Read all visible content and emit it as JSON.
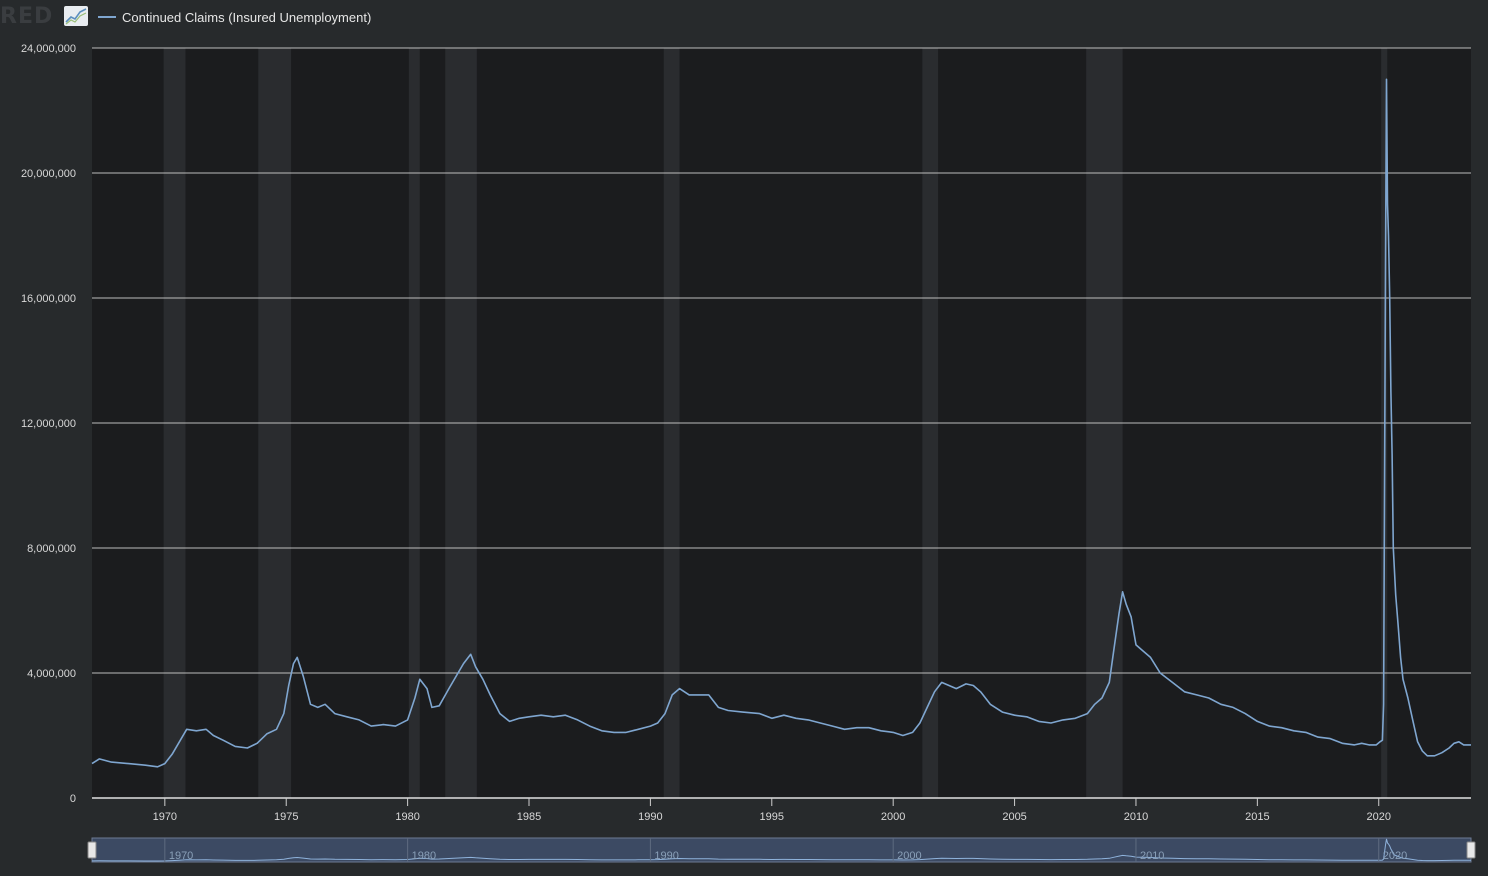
{
  "header": {
    "logo_text": "RED",
    "chart_icon": "line-chart-icon",
    "legend_label": "Continued Claims (Insured Unemployment)",
    "legend_color": "#7fa6d0"
  },
  "colors": {
    "background": "#272a2c",
    "plot_background": "#1b1c1e",
    "recession_band": "#2a2c2f",
    "gridline": "#d8d8d8",
    "series": "#7fa6d0",
    "navigator_fill": "#3c4a63"
  },
  "chart_data": {
    "type": "line",
    "title": "",
    "xlabel": "",
    "ylabel": "",
    "ylim": [
      0,
      24000000
    ],
    "xlim": [
      1967.0,
      2023.8
    ],
    "y_ticks": [
      0,
      4000000,
      8000000,
      12000000,
      16000000,
      20000000,
      24000000
    ],
    "y_tick_labels": [
      "0",
      "4,000,000",
      "8,000,000",
      "12,000,000",
      "16,000,000",
      "20,000,000",
      "24,000,000"
    ],
    "x_ticks": [
      1970,
      1975,
      1980,
      1985,
      1990,
      1995,
      2000,
      2005,
      2010,
      2015,
      2020
    ],
    "x_tick_labels": [
      "1970",
      "1975",
      "1980",
      "1985",
      "1990",
      "1995",
      "2000",
      "2005",
      "2010",
      "2015",
      "2020"
    ],
    "navigator_ticks": [
      1970,
      1980,
      1990,
      2000,
      2010,
      2020
    ],
    "navigator_tick_labels": [
      "1970",
      "1980",
      "1990",
      "2000",
      "2010",
      "2020"
    ],
    "grid": true,
    "recessions": [
      [
        1969.95,
        1970.85
      ],
      [
        1973.85,
        1975.2
      ],
      [
        1980.05,
        1980.5
      ],
      [
        1981.55,
        1982.85
      ],
      [
        1990.55,
        1991.2
      ],
      [
        2001.2,
        2001.85
      ],
      [
        2007.95,
        2009.45
      ],
      [
        2020.1,
        2020.35
      ]
    ],
    "series": [
      {
        "name": "Continued Claims (Insured Unemployment)",
        "x": [
          1967.0,
          1967.3,
          1967.8,
          1968.5,
          1969.2,
          1969.7,
          1970.0,
          1970.3,
          1970.6,
          1970.9,
          1971.3,
          1971.7,
          1972.0,
          1972.4,
          1972.9,
          1973.4,
          1973.8,
          1974.2,
          1974.6,
          1974.9,
          1975.1,
          1975.3,
          1975.45,
          1975.7,
          1976.0,
          1976.3,
          1976.6,
          1977.0,
          1977.5,
          1978.0,
          1978.5,
          1979.0,
          1979.5,
          1980.0,
          1980.3,
          1980.5,
          1980.8,
          1981.0,
          1981.3,
          1981.7,
          1982.0,
          1982.3,
          1982.6,
          1982.8,
          1983.1,
          1983.4,
          1983.8,
          1984.2,
          1984.6,
          1985.0,
          1985.5,
          1986.0,
          1986.5,
          1987.0,
          1987.5,
          1988.0,
          1988.5,
          1989.0,
          1989.5,
          1990.0,
          1990.3,
          1990.6,
          1990.9,
          1991.2,
          1991.6,
          1992.0,
          1992.4,
          1992.8,
          1993.2,
          1993.8,
          1994.5,
          1995.0,
          1995.5,
          1996.0,
          1996.5,
          1997.0,
          1997.5,
          1998.0,
          1998.5,
          1999.0,
          1999.5,
          2000.0,
          2000.4,
          2000.8,
          2001.1,
          2001.4,
          2001.7,
          2002.0,
          2002.3,
          2002.6,
          2003.0,
          2003.3,
          2003.6,
          2004.0,
          2004.5,
          2005.0,
          2005.5,
          2006.0,
          2006.5,
          2007.0,
          2007.5,
          2008.0,
          2008.3,
          2008.6,
          2008.9,
          2009.1,
          2009.3,
          2009.45,
          2009.6,
          2009.8,
          2010.0,
          2010.3,
          2010.6,
          2011.0,
          2011.5,
          2012.0,
          2012.5,
          2013.0,
          2013.5,
          2014.0,
          2014.5,
          2015.0,
          2015.5,
          2016.0,
          2016.5,
          2017.0,
          2017.5,
          2018.0,
          2018.5,
          2019.0,
          2019.3,
          2019.6,
          2019.9,
          2020.05,
          2020.15,
          2020.2,
          2020.28,
          2020.32,
          2020.36,
          2020.4,
          2020.45,
          2020.5,
          2020.55,
          2020.6,
          2020.7,
          2020.8,
          2020.9,
          2021.0,
          2021.2,
          2021.4,
          2021.6,
          2021.8,
          2022.0,
          2022.3,
          2022.6,
          2022.9,
          2023.1,
          2023.3,
          2023.5,
          2023.8
        ],
        "values": [
          1100000,
          1250000,
          1150000,
          1100000,
          1050000,
          1000000,
          1100000,
          1400000,
          1800000,
          2200000,
          2150000,
          2200000,
          2000000,
          1850000,
          1650000,
          1600000,
          1750000,
          2050000,
          2200000,
          2700000,
          3600000,
          4300000,
          4500000,
          3900000,
          3000000,
          2900000,
          3000000,
          2700000,
          2600000,
          2500000,
          2300000,
          2350000,
          2300000,
          2500000,
          3200000,
          3800000,
          3500000,
          2900000,
          2950000,
          3500000,
          3900000,
          4300000,
          4600000,
          4200000,
          3800000,
          3300000,
          2700000,
          2450000,
          2550000,
          2600000,
          2650000,
          2600000,
          2650000,
          2500000,
          2300000,
          2150000,
          2100000,
          2100000,
          2200000,
          2300000,
          2400000,
          2700000,
          3300000,
          3500000,
          3300000,
          3300000,
          3300000,
          2900000,
          2800000,
          2750000,
          2700000,
          2550000,
          2650000,
          2550000,
          2500000,
          2400000,
          2300000,
          2200000,
          2250000,
          2250000,
          2150000,
          2100000,
          2000000,
          2100000,
          2400000,
          2900000,
          3400000,
          3700000,
          3600000,
          3500000,
          3650000,
          3600000,
          3400000,
          3000000,
          2750000,
          2650000,
          2600000,
          2450000,
          2400000,
          2500000,
          2550000,
          2700000,
          3000000,
          3200000,
          3700000,
          4800000,
          5900000,
          6600000,
          6200000,
          5800000,
          4900000,
          4700000,
          4500000,
          4000000,
          3700000,
          3400000,
          3300000,
          3200000,
          3000000,
          2900000,
          2700000,
          2450000,
          2300000,
          2250000,
          2150000,
          2100000,
          1950000,
          1900000,
          1750000,
          1700000,
          1750000,
          1700000,
          1700000,
          1800000,
          1850000,
          3000000,
          17000000,
          23000000,
          19000000,
          18000000,
          16000000,
          13000000,
          11000000,
          8000000,
          6500000,
          5500000,
          4500000,
          3800000,
          3200000,
          2500000,
          1800000,
          1500000,
          1350000,
          1350000,
          1450000,
          1600000,
          1750000,
          1800000,
          1700000,
          1700000
        ]
      }
    ]
  }
}
